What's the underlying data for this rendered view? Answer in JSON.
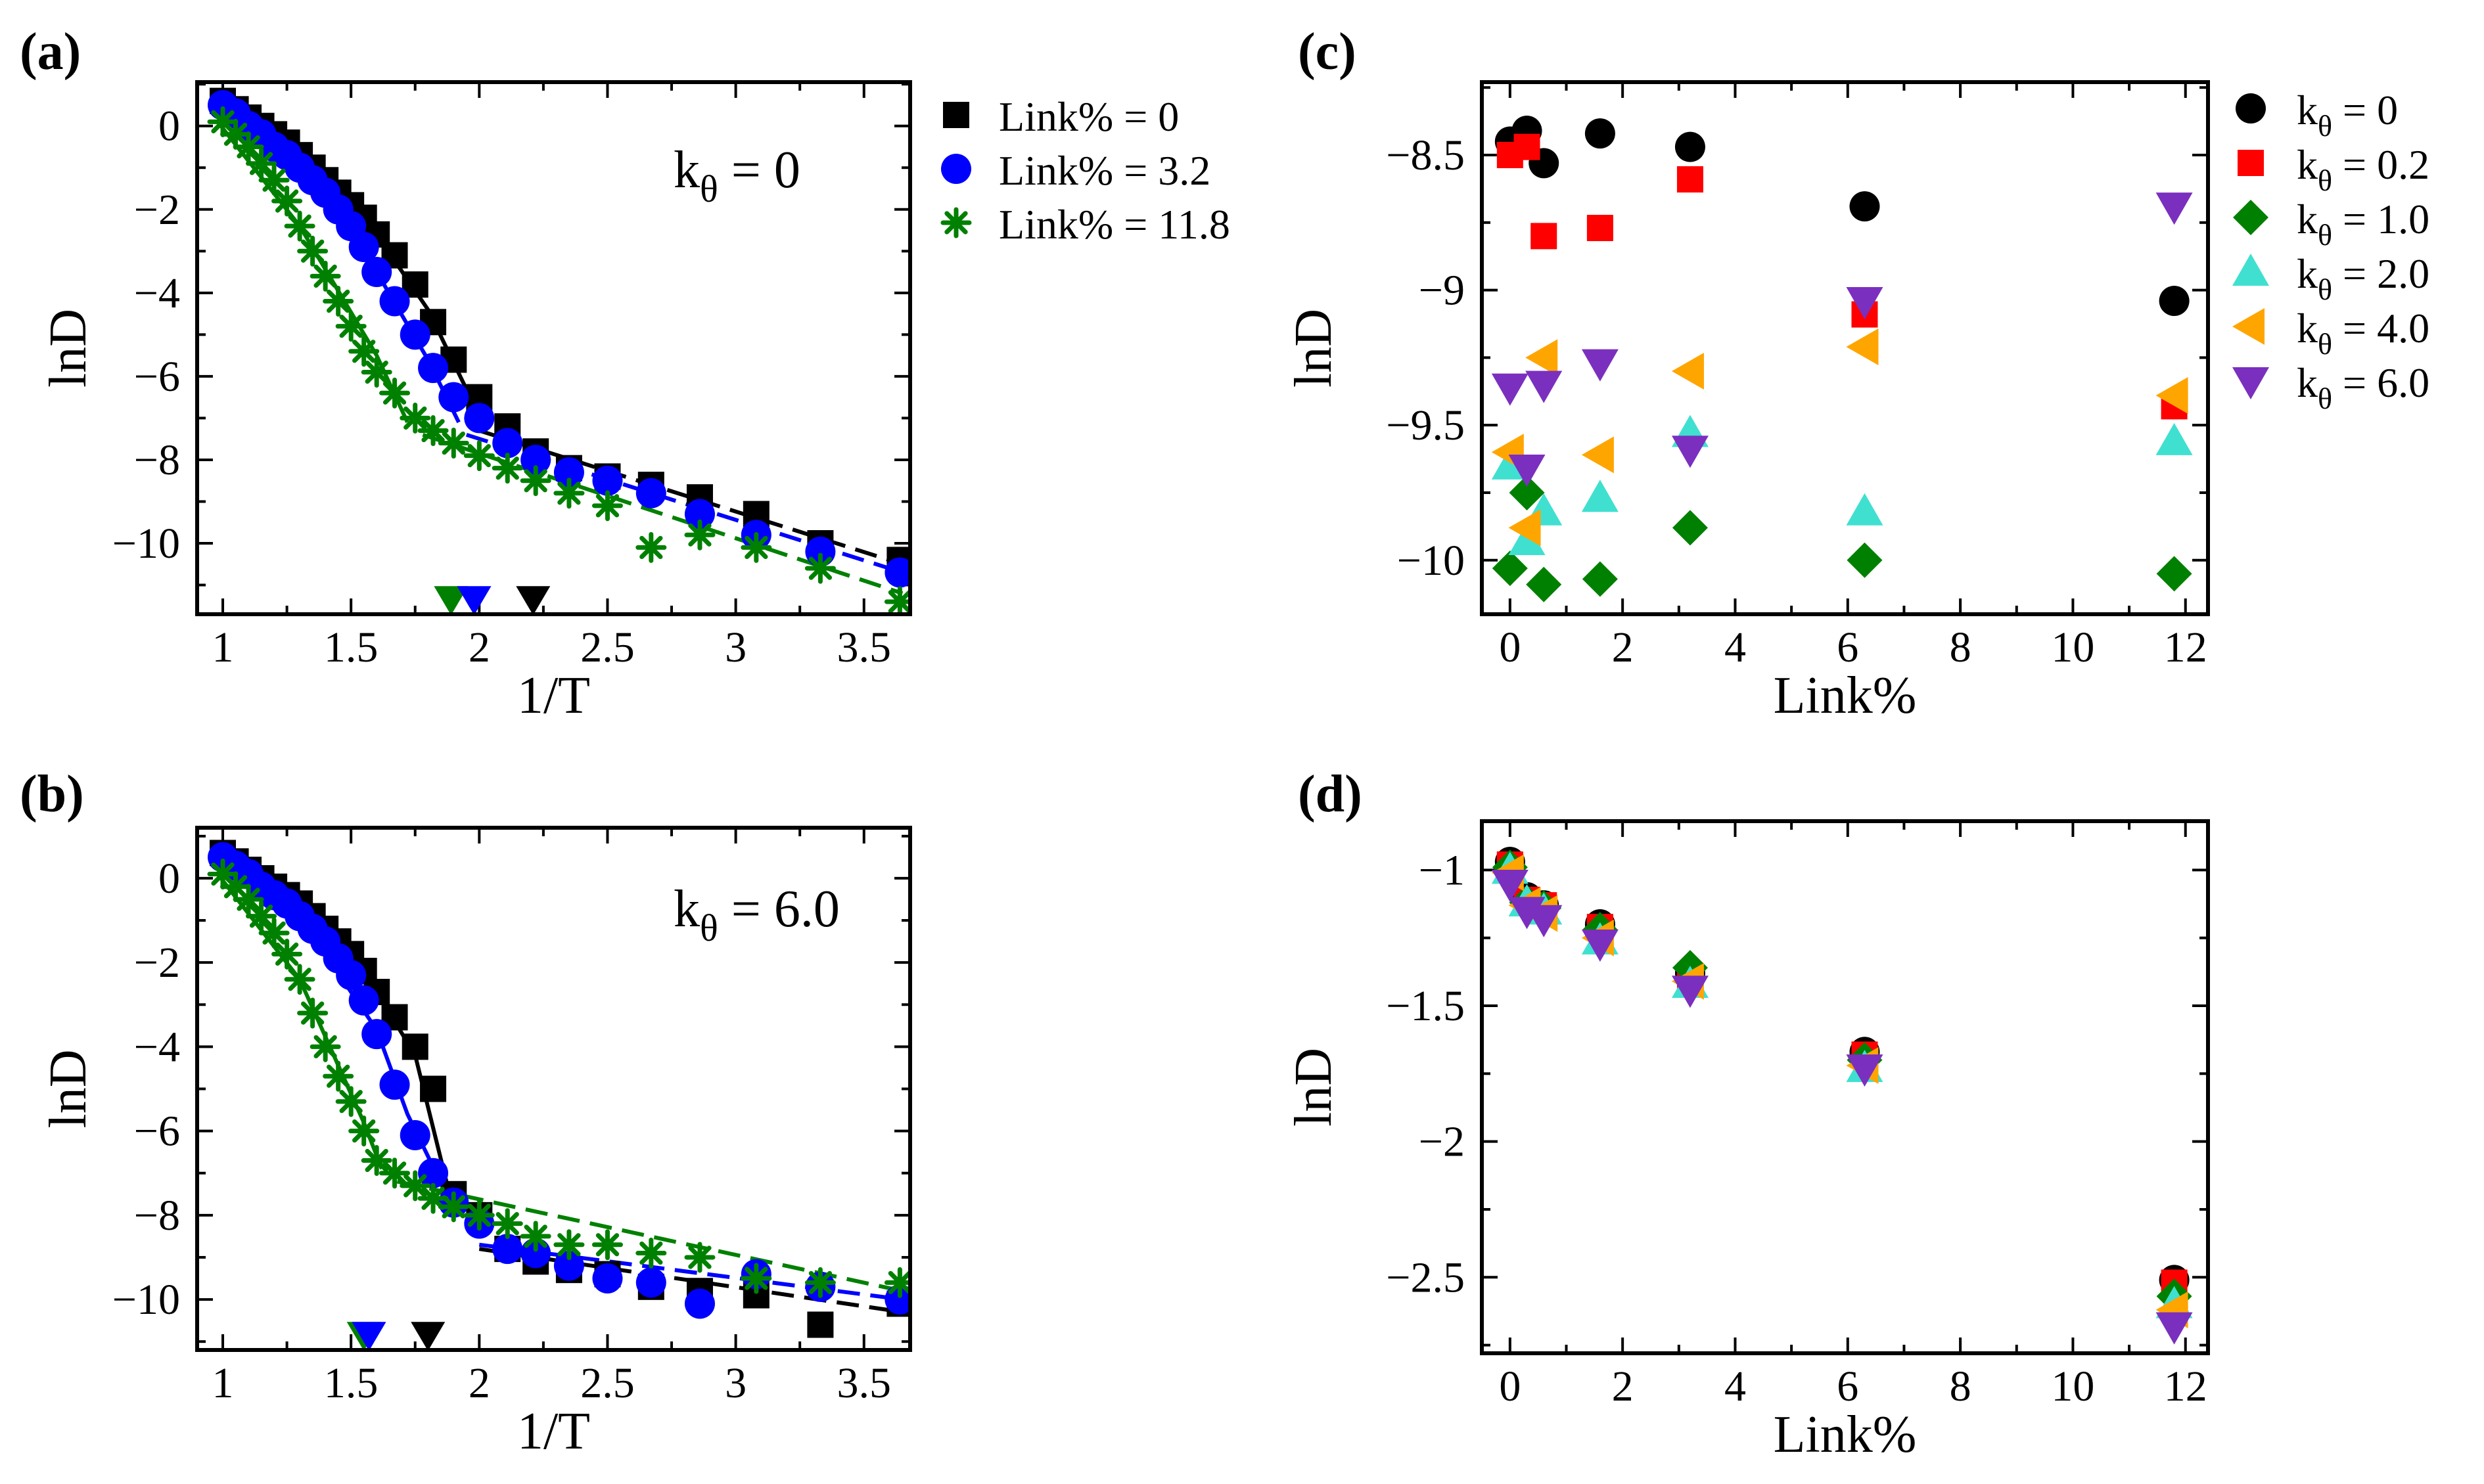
{
  "chart_data": [
    {
      "panel": "(a)",
      "type": "line",
      "xlabel": "1/T",
      "ylabel": "lnD",
      "xlim": [
        0.9,
        3.68
      ],
      "ylim": [
        -11.7,
        1.05
      ],
      "xticks": [
        1,
        1.5,
        2,
        2.5,
        3,
        3.5
      ],
      "xtick_labels": [
        "1",
        "1.5",
        "2",
        "2.5",
        "3",
        "3.5"
      ],
      "yticks": [
        0,
        -2,
        -4,
        -6,
        -8,
        -10
      ],
      "ytick_labels": [
        "0",
        "−2",
        "−4",
        "−6",
        "−8",
        "−10"
      ],
      "annotation": {
        "text": "k",
        "sub": "θ",
        "value": " = 0"
      },
      "legend_position": "outside-right",
      "series": [
        {
          "name": "Link% = 0",
          "marker": "square",
          "color": "#000000",
          "x": [
            1.0,
            1.05,
            1.1,
            1.15,
            1.2,
            1.25,
            1.3,
            1.35,
            1.4,
            1.45,
            1.5,
            1.55,
            1.6,
            1.67,
            1.75,
            1.82,
            1.9,
            2.0,
            2.11,
            2.22,
            2.35,
            2.5,
            2.67,
            2.86,
            3.08,
            3.33,
            3.64
          ],
          "y": [
            0.6,
            0.4,
            0.2,
            0.0,
            -0.2,
            -0.4,
            -0.7,
            -1.0,
            -1.3,
            -1.6,
            -1.9,
            -2.2,
            -2.6,
            -3.1,
            -3.8,
            -4.7,
            -5.6,
            -6.5,
            -7.2,
            -7.8,
            -8.2,
            -8.4,
            -8.6,
            -8.9,
            -9.3,
            -10.0,
            -10.4
          ],
          "fit_steep": [
            [
              0.98,
              0.6
            ],
            [
              1.3,
              -0.7
            ],
            [
              1.6,
              -2.6
            ],
            [
              1.8,
              -4.4
            ],
            [
              2.02,
              -7.2
            ]
          ],
          "fit_tail": [
            [
              2.0,
              -7.3
            ],
            [
              3.65,
              -10.5
            ]
          ]
        },
        {
          "name": "Link% = 3.2",
          "marker": "circle",
          "color": "#0000ff",
          "x": [
            1.0,
            1.05,
            1.1,
            1.15,
            1.2,
            1.25,
            1.3,
            1.35,
            1.4,
            1.45,
            1.5,
            1.55,
            1.6,
            1.67,
            1.75,
            1.82,
            1.9,
            2.0,
            2.11,
            2.22,
            2.35,
            2.5,
            2.67,
            2.86,
            3.08,
            3.33,
            3.64
          ],
          "y": [
            0.5,
            0.3,
            0.0,
            -0.2,
            -0.5,
            -0.7,
            -1.0,
            -1.3,
            -1.6,
            -2.0,
            -2.4,
            -2.9,
            -3.5,
            -4.2,
            -5.0,
            -5.8,
            -6.5,
            -7.0,
            -7.6,
            -8.0,
            -8.3,
            -8.5,
            -8.8,
            -9.3,
            -9.8,
            -10.2,
            -10.7
          ],
          "fit_steep": [
            [
              0.98,
              0.5
            ],
            [
              1.3,
              -1.0
            ],
            [
              1.6,
              -3.5
            ],
            [
              1.8,
              -5.6
            ],
            [
              1.92,
              -7.1
            ]
          ],
          "fit_tail": [
            [
              1.95,
              -7.4
            ],
            [
              3.65,
              -10.7
            ]
          ]
        },
        {
          "name": "Link% = 11.8",
          "marker": "star",
          "color": "#008000",
          "x": [
            1.0,
            1.05,
            1.1,
            1.15,
            1.2,
            1.25,
            1.3,
            1.35,
            1.4,
            1.45,
            1.5,
            1.55,
            1.6,
            1.67,
            1.75,
            1.82,
            1.9,
            2.0,
            2.11,
            2.22,
            2.35,
            2.5,
            2.67,
            2.86,
            3.08,
            3.33,
            3.64
          ],
          "y": [
            0.1,
            -0.2,
            -0.5,
            -0.9,
            -1.3,
            -1.8,
            -2.4,
            -3.0,
            -3.6,
            -4.2,
            -4.8,
            -5.4,
            -5.9,
            -6.4,
            -7.0,
            -7.3,
            -7.6,
            -7.9,
            -8.2,
            -8.5,
            -8.8,
            -9.1,
            -10.1,
            -9.8,
            -10.1,
            -10.6,
            -11.4
          ],
          "fit_steep": [
            [
              0.98,
              0.1
            ],
            [
              1.3,
              -2.4
            ],
            [
              1.6,
              -5.5
            ],
            [
              1.72,
              -7.1
            ]
          ],
          "fit_tail": [
            [
              1.78,
              -7.4
            ],
            [
              3.65,
              -11.2
            ]
          ]
        }
      ],
      "markers_on_axis": [
        {
          "x": 1.89,
          "color": "#008000"
        },
        {
          "x": 1.98,
          "color": "#0000ff"
        },
        {
          "x": 2.21,
          "color": "#000000"
        }
      ]
    },
    {
      "panel": "(b)",
      "type": "line",
      "xlabel": "1/T",
      "ylabel": "lnD",
      "xlim": [
        0.9,
        3.68
      ],
      "ylim": [
        -11.2,
        1.2
      ],
      "xticks": [
        1,
        1.5,
        2,
        2.5,
        3,
        3.5
      ],
      "xtick_labels": [
        "1",
        "1.5",
        "2",
        "2.5",
        "3",
        "3.5"
      ],
      "yticks": [
        0,
        -2,
        -4,
        -6,
        -8,
        -10
      ],
      "ytick_labels": [
        "0",
        "−2",
        "−4",
        "−6",
        "−8",
        "−10"
      ],
      "annotation": {
        "text": "k",
        "sub": "θ",
        "value": " = 6.0"
      },
      "series": [
        {
          "name": "Link% = 0",
          "marker": "square",
          "color": "#000000",
          "x": [
            1.0,
            1.05,
            1.1,
            1.15,
            1.2,
            1.25,
            1.3,
            1.35,
            1.4,
            1.45,
            1.5,
            1.55,
            1.6,
            1.67,
            1.75,
            1.82,
            1.9,
            2.0,
            2.11,
            2.22,
            2.35,
            2.5,
            2.67,
            2.86,
            3.08,
            3.33,
            3.64
          ],
          "y": [
            0.6,
            0.4,
            0.2,
            0.0,
            -0.2,
            -0.4,
            -0.6,
            -0.9,
            -1.2,
            -1.5,
            -1.8,
            -2.2,
            -2.7,
            -3.3,
            -4.0,
            -5.0,
            -7.5,
            -8.0,
            -8.8,
            -9.1,
            -9.3,
            -9.4,
            -9.7,
            -9.8,
            -9.9,
            -10.6,
            -10.1
          ],
          "fit_steep": [
            [
              0.98,
              0.6
            ],
            [
              1.3,
              -0.6
            ],
            [
              1.6,
              -2.7
            ],
            [
              1.75,
              -4.2
            ],
            [
              1.88,
              -7.4
            ]
          ],
          "fit_tail": [
            [
              2.0,
              -8.8
            ],
            [
              3.65,
              -10.3
            ]
          ]
        },
        {
          "name": "Link% = 3.2",
          "marker": "circle",
          "color": "#0000ff",
          "x": [
            1.0,
            1.05,
            1.1,
            1.15,
            1.2,
            1.25,
            1.3,
            1.35,
            1.4,
            1.45,
            1.5,
            1.55,
            1.6,
            1.67,
            1.75,
            1.82,
            1.9,
            2.0,
            2.11,
            2.22,
            2.35,
            2.5,
            2.67,
            2.86,
            3.08,
            3.33,
            3.64
          ],
          "y": [
            0.5,
            0.3,
            0.1,
            -0.2,
            -0.4,
            -0.6,
            -0.9,
            -1.2,
            -1.5,
            -1.9,
            -2.3,
            -2.9,
            -3.7,
            -4.9,
            -6.1,
            -7.0,
            -7.7,
            -8.2,
            -8.8,
            -8.9,
            -9.2,
            -9.5,
            -9.6,
            -10.1,
            -9.4,
            -9.7,
            -10.0
          ],
          "fit_steep": [
            [
              0.98,
              0.5
            ],
            [
              1.3,
              -0.9
            ],
            [
              1.6,
              -3.6
            ],
            [
              1.72,
              -5.6
            ],
            [
              1.88,
              -7.6
            ]
          ],
          "fit_tail": [
            [
              2.0,
              -8.7
            ],
            [
              3.65,
              -10.0
            ]
          ]
        },
        {
          "name": "Link% = 11.8",
          "marker": "star",
          "color": "#008000",
          "x": [
            1.0,
            1.05,
            1.1,
            1.15,
            1.2,
            1.25,
            1.3,
            1.35,
            1.4,
            1.45,
            1.5,
            1.55,
            1.6,
            1.67,
            1.75,
            1.82,
            1.9,
            2.0,
            2.11,
            2.22,
            2.35,
            2.5,
            2.67,
            2.86,
            3.08,
            3.33,
            3.64
          ],
          "y": [
            0.1,
            -0.2,
            -0.5,
            -0.9,
            -1.3,
            -1.8,
            -2.4,
            -3.2,
            -4.0,
            -4.7,
            -5.3,
            -6.0,
            -6.7,
            -7.0,
            -7.3,
            -7.6,
            -7.8,
            -8.0,
            -8.2,
            -8.5,
            -8.7,
            -8.7,
            -8.9,
            -9.0,
            -9.5,
            -9.6,
            -9.6
          ],
          "fit_steep": [
            [
              0.98,
              0.1
            ],
            [
              1.3,
              -2.4
            ],
            [
              1.55,
              -5.8
            ],
            [
              1.62,
              -6.9
            ]
          ],
          "fit_tail": [
            [
              1.68,
              -7.2
            ],
            [
              3.65,
              -9.8
            ]
          ]
        }
      ],
      "markers_on_axis": [
        {
          "x": 1.55,
          "color": "#008000"
        },
        {
          "x": 1.57,
          "color": "#0000ff"
        },
        {
          "x": 1.8,
          "color": "#000000"
        }
      ]
    },
    {
      "panel": "(c)",
      "type": "scatter",
      "xlabel": "Link%",
      "ylabel": "lnD",
      "xlim": [
        -0.5,
        12.4
      ],
      "ylim": [
        -10.2,
        -8.23
      ],
      "xticks": [
        0,
        2,
        4,
        6,
        8,
        10,
        12
      ],
      "xtick_labels": [
        "0",
        "2",
        "4",
        "6",
        "8",
        "10",
        "12"
      ],
      "yticks": [
        -8.5,
        -9,
        -9.5,
        -10
      ],
      "ytick_labels": [
        "−8.5",
        "−9",
        "−9.5",
        "−10"
      ],
      "legend_position": "outside-right",
      "series": [
        {
          "name": "0",
          "marker": "circle",
          "color": "#000000",
          "x": [
            0,
            0.3,
            0.6,
            1.6,
            3.2,
            6.3,
            11.8
          ],
          "y": [
            -8.45,
            -8.41,
            -8.53,
            -8.42,
            -8.47,
            -8.69,
            -9.04
          ]
        },
        {
          "name": "0.2",
          "marker": "square",
          "color": "#ff0000",
          "x": [
            0,
            0.3,
            0.6,
            1.6,
            3.2,
            6.3,
            11.8
          ],
          "y": [
            -8.5,
            -8.47,
            -8.8,
            -8.77,
            -8.59,
            -9.09,
            -9.43
          ]
        },
        {
          "name": "1.0",
          "marker": "diamond",
          "color": "#008000",
          "x": [
            0,
            0.3,
            0.6,
            1.6,
            3.2,
            6.3,
            11.8
          ],
          "y": [
            -10.03,
            -9.75,
            -10.09,
            -10.07,
            -9.88,
            -10.0,
            -10.05
          ]
        },
        {
          "name": "2.0",
          "marker": "triangle-up",
          "color": "#40e0d0",
          "x": [
            0,
            0.3,
            0.6,
            1.6,
            3.2,
            6.3,
            11.8
          ],
          "y": [
            -9.65,
            -9.93,
            -9.82,
            -9.77,
            -9.53,
            -9.82,
            -9.56
          ]
        },
        {
          "name": "4.0",
          "marker": "triangle-left",
          "color": "#ffa500",
          "x": [
            0,
            0.3,
            0.6,
            1.6,
            3.2,
            6.3,
            11.8
          ],
          "y": [
            -9.6,
            -9.88,
            -9.25,
            -9.61,
            -9.3,
            -9.21,
            -9.39
          ]
        },
        {
          "name": "6.0",
          "marker": "triangle-down",
          "color": "#7b2fbe",
          "x": [
            0,
            0.3,
            0.6,
            1.6,
            3.2,
            6.3,
            11.8
          ],
          "y": [
            -9.36,
            -9.66,
            -9.35,
            -9.27,
            -9.59,
            -9.04,
            -8.69
          ]
        }
      ]
    },
    {
      "panel": "(d)",
      "type": "scatter",
      "xlabel": "Link%",
      "ylabel": "lnD",
      "xlim": [
        -0.5,
        12.4
      ],
      "ylim": [
        -2.78,
        -0.82
      ],
      "xticks": [
        0,
        2,
        4,
        6,
        8,
        10,
        12
      ],
      "xtick_labels": [
        "0",
        "2",
        "4",
        "6",
        "8",
        "10",
        "12"
      ],
      "yticks": [
        -1,
        -1.5,
        -2,
        -2.5
      ],
      "ytick_labels": [
        "−1",
        "−1.5",
        "−2",
        "−2.5"
      ],
      "series": [
        {
          "name": "0",
          "marker": "circle",
          "color": "#000000",
          "x": [
            0,
            0.3,
            0.6,
            1.6,
            3.2,
            6.3,
            11.8
          ],
          "y": [
            -0.97,
            -1.1,
            -1.13,
            -1.2,
            -1.38,
            -1.67,
            -2.51
          ]
        },
        {
          "name": "0.2",
          "marker": "square",
          "color": "#ff0000",
          "x": [
            0,
            0.3,
            0.6,
            1.6,
            3.2,
            6.3,
            11.8
          ],
          "y": [
            -0.98,
            -1.11,
            -1.13,
            -1.21,
            -1.39,
            -1.68,
            -2.52
          ]
        },
        {
          "name": "1.0",
          "marker": "diamond",
          "color": "#008000",
          "x": [
            0,
            0.3,
            0.6,
            1.6,
            3.2,
            6.3,
            11.8
          ],
          "y": [
            -0.99,
            -1.12,
            -1.14,
            -1.22,
            -1.36,
            -1.7,
            -2.57
          ]
        },
        {
          "name": "2.0",
          "marker": "triangle-up",
          "color": "#40e0d0",
          "x": [
            0,
            0.3,
            0.6,
            1.6,
            3.2,
            6.3,
            11.8
          ],
          "y": [
            -1.0,
            -1.12,
            -1.15,
            -1.26,
            -1.42,
            -1.73,
            -2.6
          ]
        },
        {
          "name": "4.0",
          "marker": "triangle-left",
          "color": "#ffa500",
          "x": [
            0,
            0.3,
            0.6,
            1.6,
            3.2,
            6.3,
            11.8
          ],
          "y": [
            -1.01,
            -1.13,
            -1.16,
            -1.25,
            -1.41,
            -1.72,
            -2.62
          ]
        },
        {
          "name": "6.0",
          "marker": "triangle-down",
          "color": "#7b2fbe",
          "x": [
            0,
            0.3,
            0.6,
            1.6,
            3.2,
            6.3,
            11.8
          ],
          "y": [
            -1.05,
            -1.15,
            -1.18,
            -1.27,
            -1.44,
            -1.73,
            -2.68
          ]
        }
      ]
    }
  ],
  "legend_left": {
    "entries": [
      "Link% = 0",
      "Link% = 3.2",
      "Link% = 11.8"
    ]
  },
  "legend_right": {
    "prefix": "k",
    "sub": "θ",
    "entries": [
      " = 0",
      " = 0.2",
      " = 1.0",
      " = 2.0",
      " = 4.0",
      " = 6.0"
    ]
  }
}
